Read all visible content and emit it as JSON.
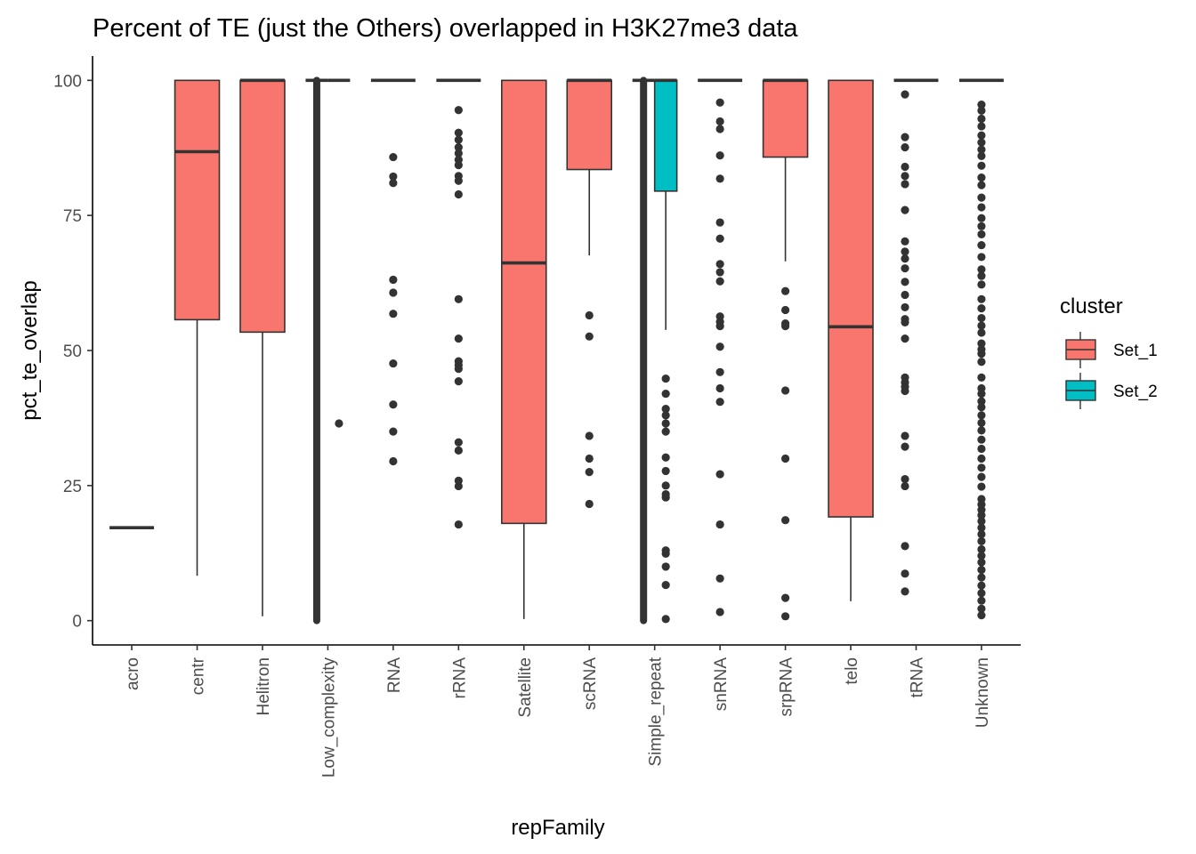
{
  "chart_data": {
    "type": "box",
    "title": "Percent of TE (just the Others) overlapped in H3K27me3 data",
    "xlabel": "repFamily",
    "ylabel": "pct_te_overlap",
    "ylim": [
      -4.5,
      104.5
    ],
    "yticks": [
      0,
      25,
      50,
      75,
      100
    ],
    "categories": [
      "acro",
      "centr",
      "Helitron",
      "Low_complexity",
      "RNA",
      "rRNA",
      "Satellite",
      "scRNA",
      "Simple_repeat",
      "snRNA",
      "srpRNA",
      "telo",
      "tRNA",
      "Unknown"
    ],
    "legend": {
      "title": "cluster",
      "position": "right",
      "entries": [
        {
          "name": "Set_1",
          "color": "#F8766D"
        },
        {
          "name": "Set_2",
          "color": "#00BFC4"
        }
      ]
    },
    "grid": false,
    "boxes": [
      {
        "category": "acro",
        "group": "Set_1",
        "pos": 0,
        "q1": 17.2,
        "median": 17.2,
        "q3": 17.2,
        "whisker_low": 17.2,
        "whisker_high": 17.2,
        "outliers": []
      },
      {
        "category": "centr",
        "group": "Set_1",
        "pos": 0,
        "q1": 55.7,
        "median": 86.8,
        "q3": 100,
        "whisker_low": 8.3,
        "whisker_high": 100,
        "outliers": []
      },
      {
        "category": "Helitron",
        "group": "Set_1",
        "pos": 0,
        "q1": 53.4,
        "median": 100,
        "q3": 100,
        "whisker_low": 0.8,
        "whisker_high": 100,
        "outliers": []
      },
      {
        "category": "Low_complexity",
        "group": "Set_1",
        "pos": -1,
        "q1": 100,
        "median": 100,
        "q3": 100,
        "whisker_low": 100,
        "whisker_high": 100,
        "outliers": [],
        "outlier_band": [
          0,
          100
        ]
      },
      {
        "category": "Low_complexity",
        "group": "Set_2",
        "pos": 1,
        "q1": 100,
        "median": 100,
        "q3": 100,
        "whisker_low": 100,
        "whisker_high": 100,
        "outliers": [
          36.5
        ]
      },
      {
        "category": "RNA",
        "group": "Set_1",
        "pos": 0,
        "q1": 100,
        "median": 100,
        "q3": 100,
        "whisker_low": 100,
        "whisker_high": 100,
        "outliers": [
          85.8,
          82.2,
          81.0,
          63.1,
          60.7,
          56.8,
          47.6,
          40.0,
          35.0,
          29.5
        ]
      },
      {
        "category": "rRNA",
        "group": "Set_1",
        "pos": 0,
        "q1": 100,
        "median": 100,
        "q3": 100,
        "whisker_low": 100,
        "whisker_high": 100,
        "outliers": [
          94.5,
          90.3,
          89.0,
          87.6,
          86.5,
          85.3,
          84.3,
          82.3,
          81.4,
          78.9,
          59.5,
          52.2,
          48.0,
          47.3,
          46.6,
          44.3,
          33.0,
          31.5,
          25.9,
          24.9,
          17.8
        ]
      },
      {
        "category": "Satellite",
        "group": "Set_1",
        "pos": 0,
        "q1": 18.0,
        "median": 66.2,
        "q3": 100,
        "whisker_low": 0.3,
        "whisker_high": 100,
        "outliers": []
      },
      {
        "category": "scRNA",
        "group": "Set_1",
        "pos": 0,
        "q1": 83.5,
        "median": 100,
        "q3": 100,
        "whisker_low": 67.6,
        "whisker_high": 100,
        "outliers": [
          56.5,
          52.6,
          34.2,
          30.0,
          27.5,
          21.6
        ]
      },
      {
        "category": "Simple_repeat",
        "group": "Set_1",
        "pos": -1,
        "q1": 100,
        "median": 100,
        "q3": 100,
        "whisker_low": 100,
        "whisker_high": 100,
        "outliers": [],
        "outlier_band": [
          0,
          100
        ]
      },
      {
        "category": "Simple_repeat",
        "group": "Set_2",
        "pos": 1,
        "q1": 79.5,
        "median": 100,
        "q3": 100,
        "whisker_low": 53.8,
        "whisker_high": 100,
        "outliers": [
          44.8,
          42.0,
          39.2,
          38.0,
          36.5,
          35.0,
          30.2,
          27.7,
          25.0,
          23.4,
          22.8,
          13.0,
          12.4,
          10.0,
          6.6,
          0.3
        ]
      },
      {
        "category": "snRNA",
        "group": "Set_1",
        "pos": 0,
        "q1": 100,
        "median": 100,
        "q3": 100,
        "whisker_low": 100,
        "whisker_high": 100,
        "outliers": [
          95.9,
          92.4,
          91.0,
          86.1,
          81.8,
          73.7,
          70.7,
          66.0,
          64.5,
          62.8,
          56.3,
          55.3,
          54.5,
          50.7,
          46.0,
          43.0,
          40.5,
          27.1,
          17.8,
          7.8,
          1.6
        ]
      },
      {
        "category": "srpRNA",
        "group": "Set_1",
        "pos": 0,
        "q1": 85.8,
        "median": 100,
        "q3": 100,
        "whisker_low": 66.5,
        "whisker_high": 100,
        "outliers": [
          61.0,
          57.5,
          55.0,
          54.5,
          42.6,
          30.0,
          18.6,
          4.2,
          0.8
        ]
      },
      {
        "category": "telo",
        "group": "Set_1",
        "pos": 0,
        "q1": 19.2,
        "median": 54.4,
        "q3": 100,
        "whisker_low": 3.6,
        "whisker_high": 100,
        "outliers": []
      },
      {
        "category": "tRNA",
        "group": "Set_1",
        "pos": -1,
        "q1": 100,
        "median": 100,
        "q3": 100,
        "whisker_low": 100,
        "whisker_high": 100,
        "outliers": [
          97.4,
          89.5,
          87.6,
          84.0,
          82.3,
          80.8,
          76.0,
          70.2,
          68.3,
          67.0,
          65.2,
          62.7,
          60.3,
          58.0,
          55.8,
          55.2,
          52.2,
          45.0,
          44.1,
          43.3,
          42.5,
          34.2,
          32.2,
          26.2,
          24.9,
          13.8,
          8.7,
          5.4
        ]
      },
      {
        "category": "tRNA",
        "group": "Set_2",
        "pos": 1,
        "q1": 100,
        "median": 100,
        "q3": 100,
        "whisker_low": 100,
        "whisker_high": 100,
        "outliers": []
      },
      {
        "category": "Unknown",
        "group": "Set_1",
        "pos": 0,
        "q1": 100,
        "median": 100,
        "q3": 100,
        "whisker_low": 100,
        "whisker_high": 100,
        "outliers": [
          95.5,
          94.4,
          92.9,
          91.5,
          89.8,
          88.5,
          87.2,
          86.0,
          84.2,
          82.0,
          80.6,
          78.3,
          76.5,
          74.5,
          73.0,
          71.5,
          69.5,
          67.3,
          65.0,
          63.8,
          62.2,
          59.5,
          57.8,
          56.0,
          54.6,
          53.3,
          51.3,
          50.2,
          49.4,
          47.9,
          45.0,
          43.0,
          42.0,
          40.6,
          39.5,
          38.0,
          36.6,
          35.2,
          33.5,
          31.8,
          30.0,
          28.3,
          26.6,
          24.8,
          22.5,
          21.5,
          20.5,
          19.5,
          18.4,
          17.2,
          16.0,
          14.7,
          13.2,
          12.0,
          10.8,
          9.4,
          8.0,
          6.5,
          5.1,
          3.7,
          2.2,
          1.0
        ]
      }
    ]
  }
}
